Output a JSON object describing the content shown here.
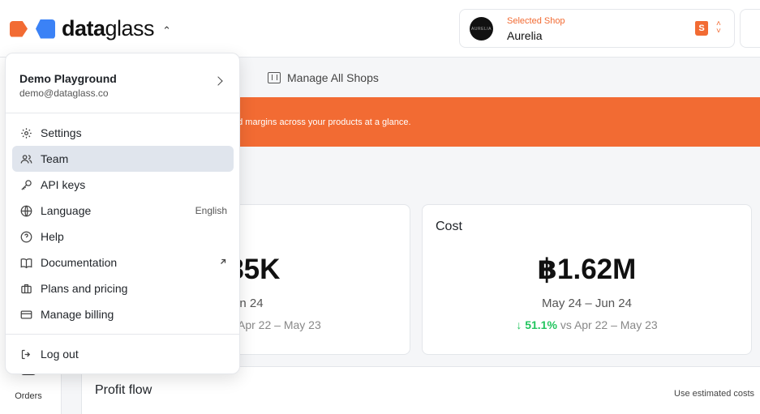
{
  "header": {
    "logo": {
      "bold": "data",
      "light": "glass"
    },
    "shop": {
      "caption": "Selected Shop",
      "name": "Aurelia",
      "avatar_text": "AURELIA",
      "platform_icon": "shopee-bag-icon"
    }
  },
  "tabs": {
    "manage_all_shops": "Manage All Shops"
  },
  "banner": {
    "text": "nd margins across your products at a glance."
  },
  "cards": [
    {
      "title": "",
      "value": "3.85K",
      "range": "– Jun 24",
      "compare_text": "Apr 22 – May 23"
    },
    {
      "title": "Cost",
      "value": "฿1.62M",
      "range": "May 24 – Jun 24",
      "arrow": "↓",
      "change_pct": "51.1%",
      "compare_prefix": "vs",
      "compare_text": "Apr 22 – May 23",
      "change_color": "#22c55e"
    }
  ],
  "profit": {
    "title": "Profit flow",
    "estimate_label": "Use estimated costs"
  },
  "rail": {
    "orders_label": "Orders"
  },
  "menu": {
    "account": {
      "name": "Demo Playground",
      "email": "demo@dataglass.co"
    },
    "items": [
      {
        "label": "Settings",
        "icon": "gear-icon"
      },
      {
        "label": "Team",
        "icon": "users-icon",
        "active": true
      },
      {
        "label": "API keys",
        "icon": "key-icon"
      },
      {
        "label": "Language",
        "icon": "globe-icon",
        "value": "English"
      },
      {
        "label": "Help",
        "icon": "help-circle-icon"
      },
      {
        "label": "Documentation",
        "icon": "book-icon",
        "external_icon": "arrow-up-right-icon"
      },
      {
        "label": "Plans and pricing",
        "icon": "briefcase-icon"
      },
      {
        "label": "Manage billing",
        "icon": "credit-card-icon"
      }
    ],
    "logout": {
      "label": "Log out",
      "icon": "logout-icon"
    }
  },
  "colors": {
    "accent": "#f26b33",
    "brand_blue": "#3b82f6",
    "active_bg": "#e0e5ed",
    "positive": "#22c55e"
  }
}
